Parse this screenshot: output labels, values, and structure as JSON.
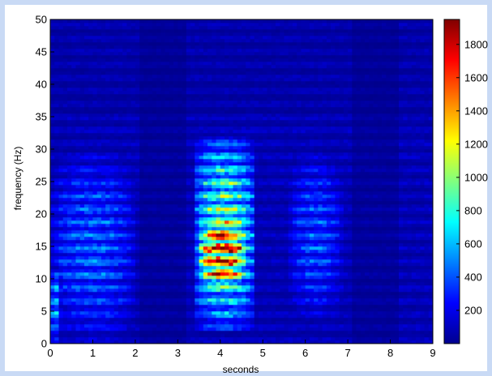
{
  "chart_data": {
    "type": "heatmap",
    "xlabel": "seconds",
    "ylabel": "frequency (Hz)",
    "xlim": [
      0,
      9
    ],
    "ylim": [
      0,
      50
    ],
    "x_ticks": [
      "0",
      "1",
      "2",
      "3",
      "4",
      "5",
      "6",
      "7",
      "8",
      "9"
    ],
    "y_ticks": [
      "0",
      "5",
      "10",
      "15",
      "20",
      "25",
      "30",
      "35",
      "40",
      "45",
      "50"
    ],
    "colorbar": {
      "min": 0,
      "max": 1950,
      "ticks": [
        "200",
        "400",
        "600",
        "800",
        "1000",
        "1200",
        "1400",
        "1600",
        "1800"
      ],
      "colormap": "jet"
    },
    "grid": false,
    "regions": [
      {
        "time": [
          0.0,
          0.25
        ],
        "freq": [
          0,
          12
        ],
        "peak": 600
      },
      {
        "time": [
          0.0,
          2.0
        ],
        "freq": [
          0,
          30
        ],
        "peak": 450
      },
      {
        "time": [
          3.4,
          4.8
        ],
        "freq": [
          2,
          32
        ],
        "peak": 1000
      },
      {
        "time": [
          3.5,
          4.6
        ],
        "freq": [
          8,
          20
        ],
        "peak": 1900
      },
      {
        "time": [
          5.6,
          6.9
        ],
        "freq": [
          3,
          30
        ],
        "peak": 400
      }
    ]
  },
  "colors": {
    "page_border": "#c9daf5",
    "background": "#ffffff"
  }
}
